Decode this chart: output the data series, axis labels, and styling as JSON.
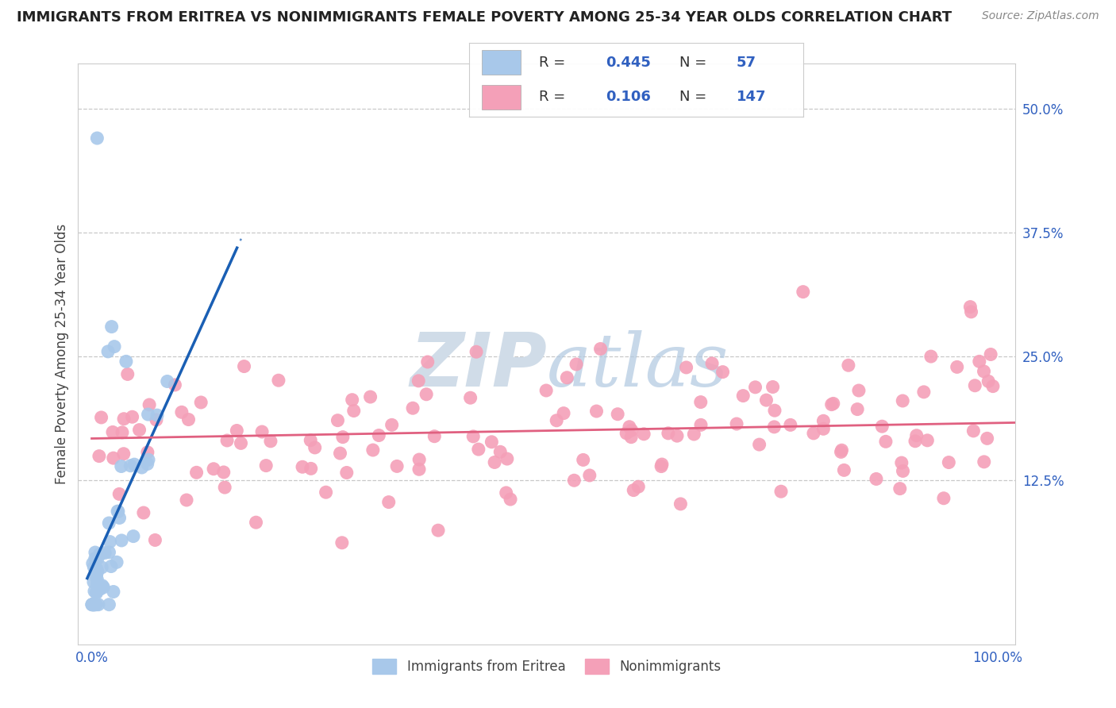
{
  "title": "IMMIGRANTS FROM ERITREA VS NONIMMIGRANTS FEMALE POVERTY AMONG 25-34 YEAR OLDS CORRELATION CHART",
  "source": "Source: ZipAtlas.com",
  "ylabel": "Female Poverty Among 25-34 Year Olds",
  "blue_R": 0.445,
  "blue_N": 57,
  "pink_R": 0.106,
  "pink_N": 147,
  "blue_scatter_color": "#a8c8ea",
  "blue_line_color": "#1a5fb4",
  "pink_scatter_color": "#f4a0b8",
  "pink_line_color": "#e06080",
  "ytick_color": "#3060c0",
  "legend_label_blue": "Immigrants from Eritrea",
  "legend_label_pink": "Nonimmigrants",
  "watermark_color": "#d0dce8",
  "background_color": "#ffffff",
  "title_color": "#222222",
  "title_fontsize": 13,
  "ylabel_fontsize": 12,
  "tick_fontsize": 12,
  "legend_fontsize": 13
}
